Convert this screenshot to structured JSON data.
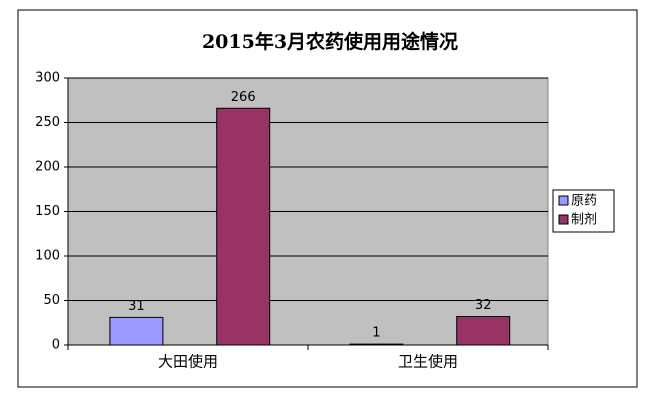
{
  "chart_data": {
    "type": "bar",
    "title": "2015年3月农药使用用途情况",
    "categories": [
      "大田使用",
      "卫生使用"
    ],
    "series": [
      {
        "name": "原药",
        "color": "#9999ff",
        "values": [
          31,
          1
        ]
      },
      {
        "name": "制剂",
        "color": "#993366",
        "values": [
          266,
          32
        ]
      }
    ],
    "ylim": [
      0,
      300
    ],
    "yticks": [
      0,
      50,
      100,
      150,
      200,
      250,
      300
    ],
    "grid": true,
    "legend": "right"
  }
}
